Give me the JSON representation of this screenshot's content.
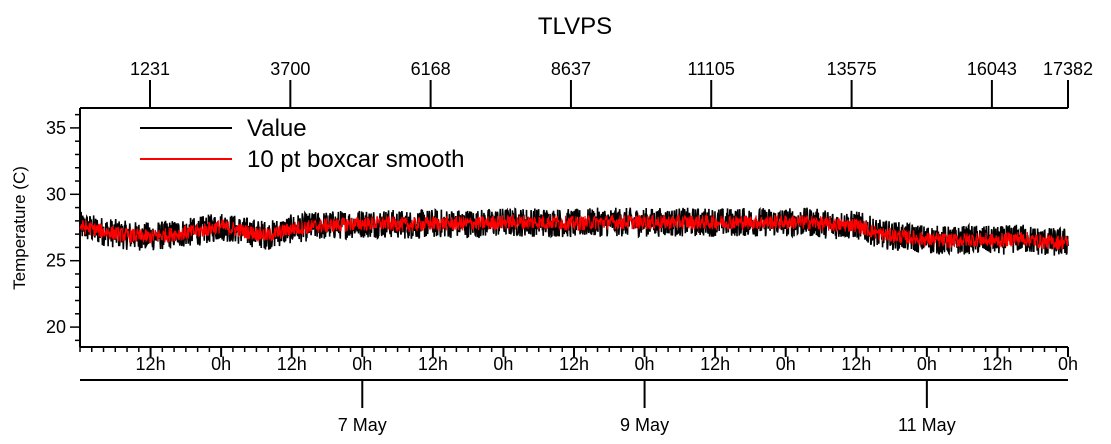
{
  "chart_data": {
    "type": "line",
    "title": "TLVPS",
    "ylabel": "Temperature (C)",
    "ylim": [
      18.5,
      36.5
    ],
    "yticks": [
      20,
      25,
      30,
      35
    ],
    "top_axis": {
      "ticks": [
        1231,
        3700,
        6168,
        8637,
        11105,
        13575,
        16043,
        17382
      ]
    },
    "time_axis": {
      "start_hour": 0,
      "end_hour": 168,
      "hour_tick_labels": [
        "12h",
        "0h",
        "12h",
        "0h",
        "12h",
        "0h",
        "12h",
        "0h",
        "12h",
        "0h",
        "12h",
        "0h",
        "12h",
        "0h"
      ],
      "date_ticks": [
        {
          "label": "7 May",
          "hour": 48
        },
        {
          "label": "9 May",
          "hour": 96
        },
        {
          "label": "11 May",
          "hour": 144
        }
      ]
    },
    "series": [
      {
        "name": "Value",
        "color": "#000000",
        "x_hours": [
          0,
          4,
          8,
          12,
          16,
          20,
          24,
          28,
          32,
          36,
          40,
          44,
          48,
          52,
          56,
          60,
          64,
          68,
          72,
          76,
          80,
          84,
          88,
          92,
          96,
          100,
          104,
          108,
          112,
          116,
          120,
          124,
          128,
          132,
          136,
          140,
          144,
          148,
          152,
          156,
          160,
          164,
          168
        ],
        "y_center": [
          27.6,
          27.2,
          26.9,
          26.8,
          27.0,
          27.2,
          27.6,
          27.2,
          26.9,
          27.4,
          27.6,
          27.7,
          27.8,
          27.8,
          27.7,
          27.8,
          27.8,
          27.8,
          27.9,
          27.9,
          27.9,
          27.8,
          27.9,
          27.9,
          27.9,
          27.9,
          27.9,
          27.9,
          27.9,
          27.9,
          27.9,
          27.9,
          27.7,
          27.7,
          27.0,
          26.8,
          26.6,
          26.5,
          26.6,
          26.5,
          26.7,
          26.4,
          26.4
        ],
        "y_halfwidth": 1.1
      },
      {
        "name": "10 pt boxcar smooth",
        "color": "#ff0000",
        "x_hours": [
          0,
          4,
          8,
          12,
          16,
          20,
          24,
          28,
          32,
          36,
          40,
          44,
          48,
          52,
          56,
          60,
          64,
          68,
          72,
          76,
          80,
          84,
          88,
          92,
          96,
          100,
          104,
          108,
          112,
          116,
          120,
          124,
          128,
          132,
          136,
          140,
          144,
          148,
          152,
          156,
          160,
          164,
          168
        ],
        "y_center": [
          27.6,
          27.2,
          26.9,
          26.8,
          27.0,
          27.2,
          27.6,
          27.2,
          26.9,
          27.4,
          27.6,
          27.7,
          27.8,
          27.8,
          27.7,
          27.8,
          27.8,
          27.8,
          27.9,
          27.9,
          27.9,
          27.8,
          27.9,
          27.9,
          27.9,
          27.9,
          27.9,
          27.9,
          27.9,
          27.9,
          27.9,
          27.9,
          27.7,
          27.7,
          27.0,
          26.8,
          26.6,
          26.5,
          26.6,
          26.5,
          26.7,
          26.4,
          26.4
        ],
        "y_halfwidth": 0.55
      }
    ],
    "legend": "top-left"
  }
}
